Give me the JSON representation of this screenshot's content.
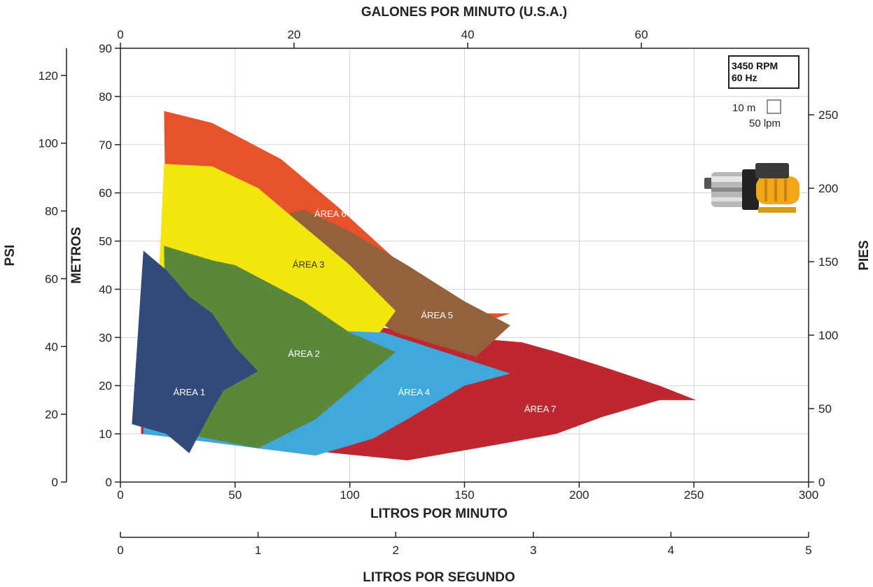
{
  "chart_data": {
    "type": "area",
    "top_axis_title": "GALONES POR MINUTO (U.S.A.)",
    "bottom_axis_title": "LITROS POR MINUTO",
    "extra_axis_title": "LITROS POR SEGUNDO",
    "left_axis_title_metros": "METROS",
    "left_axis_title_psi": "PSI",
    "right_axis_title": "PIES",
    "xlim": [
      0,
      300
    ],
    "ylim": [
      0,
      90
    ],
    "grid": true,
    "x_ticks": [
      "0",
      "50",
      "100",
      "150",
      "200",
      "250",
      "300"
    ],
    "y_ticks": [
      "0",
      "10",
      "20",
      "30",
      "40",
      "50",
      "60",
      "70",
      "80",
      "90"
    ],
    "gpm_ticks": [
      "0",
      "20",
      "40",
      "60"
    ],
    "psi_ticks": [
      "0",
      "20",
      "40",
      "60",
      "80",
      "100",
      "120"
    ],
    "pies_ticks": [
      "0",
      "50",
      "100",
      "150",
      "200",
      "250"
    ],
    "lps_ticks": [
      "0",
      "1",
      "2",
      "3",
      "4",
      "5"
    ],
    "rpm_box": [
      "3450 RPM",
      "60 Hz"
    ],
    "legend_head": "10 m",
    "legend_flow": "50 lpm",
    "series": [
      {
        "name": "ÁREA 7",
        "color": "#BE2630",
        "label_color": "#ffffff",
        "label_at": [
          183,
          15
        ],
        "points": [
          [
            9,
            10
          ],
          [
            125,
            4.5
          ],
          [
            167,
            8
          ],
          [
            190,
            10
          ],
          [
            210,
            13.5
          ],
          [
            235,
            17
          ],
          [
            251,
            17
          ],
          [
            235,
            20
          ],
          [
            210,
            24
          ],
          [
            190,
            27
          ],
          [
            175,
            29
          ],
          [
            150,
            30
          ],
          [
            115,
            32
          ],
          [
            60,
            34
          ],
          [
            9,
            30
          ]
        ]
      },
      {
        "name": "ÁREA 6",
        "color": "#E6532B",
        "label_color": "#ffffff",
        "label_at": [
          91.5,
          55.5
        ],
        "points": [
          [
            20,
            45
          ],
          [
            19,
            77
          ],
          [
            40,
            74.5
          ],
          [
            70,
            67
          ],
          [
            95,
            57
          ],
          [
            125,
            44
          ],
          [
            150,
            35
          ],
          [
            170,
            35
          ],
          [
            157,
            33
          ],
          [
            140,
            38
          ],
          [
            80,
            54
          ],
          [
            40,
            60
          ],
          [
            20,
            56
          ]
        ]
      },
      {
        "name": "ÁREA 5",
        "color": "#94613A",
        "label_color": "#ffffff",
        "label_at": [
          138,
          34.5
        ],
        "points": [
          [
            60,
            54
          ],
          [
            80,
            56.5
          ],
          [
            100,
            52
          ],
          [
            125,
            45
          ],
          [
            150,
            37.5
          ],
          [
            170,
            32.5
          ],
          [
            155,
            26
          ],
          [
            120,
            31
          ],
          [
            100,
            37
          ]
        ]
      },
      {
        "name": "ÁREA 3",
        "color": "#F4E50F",
        "label_color": "#333333",
        "label_at": [
          82,
          45
        ],
        "points": [
          [
            17,
            45
          ],
          [
            19,
            66
          ],
          [
            40,
            65.5
          ],
          [
            60,
            61
          ],
          [
            80,
            53
          ],
          [
            100,
            45
          ],
          [
            120,
            35.5
          ],
          [
            110,
            29
          ],
          [
            70,
            31
          ],
          [
            17,
            27
          ]
        ]
      },
      {
        "name": "ÁREA 4",
        "color": "#3FA8DC",
        "label_color": "#ffffff",
        "label_at": [
          128,
          18.5
        ],
        "points": [
          [
            10,
            10
          ],
          [
            85,
            5.5
          ],
          [
            110,
            9
          ],
          [
            125,
            13
          ],
          [
            150,
            20
          ],
          [
            170,
            22.5
          ],
          [
            115,
            31
          ],
          [
            60,
            32
          ],
          [
            10,
            30
          ]
        ]
      },
      {
        "name": "ÁREA 2",
        "color": "#5A883A",
        "label_color": "#ffffff",
        "label_at": [
          80,
          26.5
        ],
        "points": [
          [
            20,
            18
          ],
          [
            19,
            49
          ],
          [
            40,
            46
          ],
          [
            50,
            45
          ],
          [
            60,
            42.5
          ],
          [
            80,
            37.5
          ],
          [
            100,
            31
          ],
          [
            120,
            27
          ],
          [
            105,
            21
          ],
          [
            85,
            13
          ],
          [
            60,
            7
          ],
          [
            28,
            10
          ],
          [
            15,
            20
          ]
        ]
      },
      {
        "name": "ÁREA 1",
        "color": "#324A7A",
        "label_color": "#ffffff",
        "label_at": [
          30,
          18.5
        ],
        "points": [
          [
            5,
            12
          ],
          [
            10,
            48
          ],
          [
            20,
            44
          ],
          [
            30,
            38.5
          ],
          [
            40,
            35
          ],
          [
            50,
            28
          ],
          [
            60,
            23
          ],
          [
            45,
            19
          ],
          [
            40,
            15
          ],
          [
            30,
            6
          ],
          [
            20,
            10
          ]
        ]
      }
    ]
  }
}
